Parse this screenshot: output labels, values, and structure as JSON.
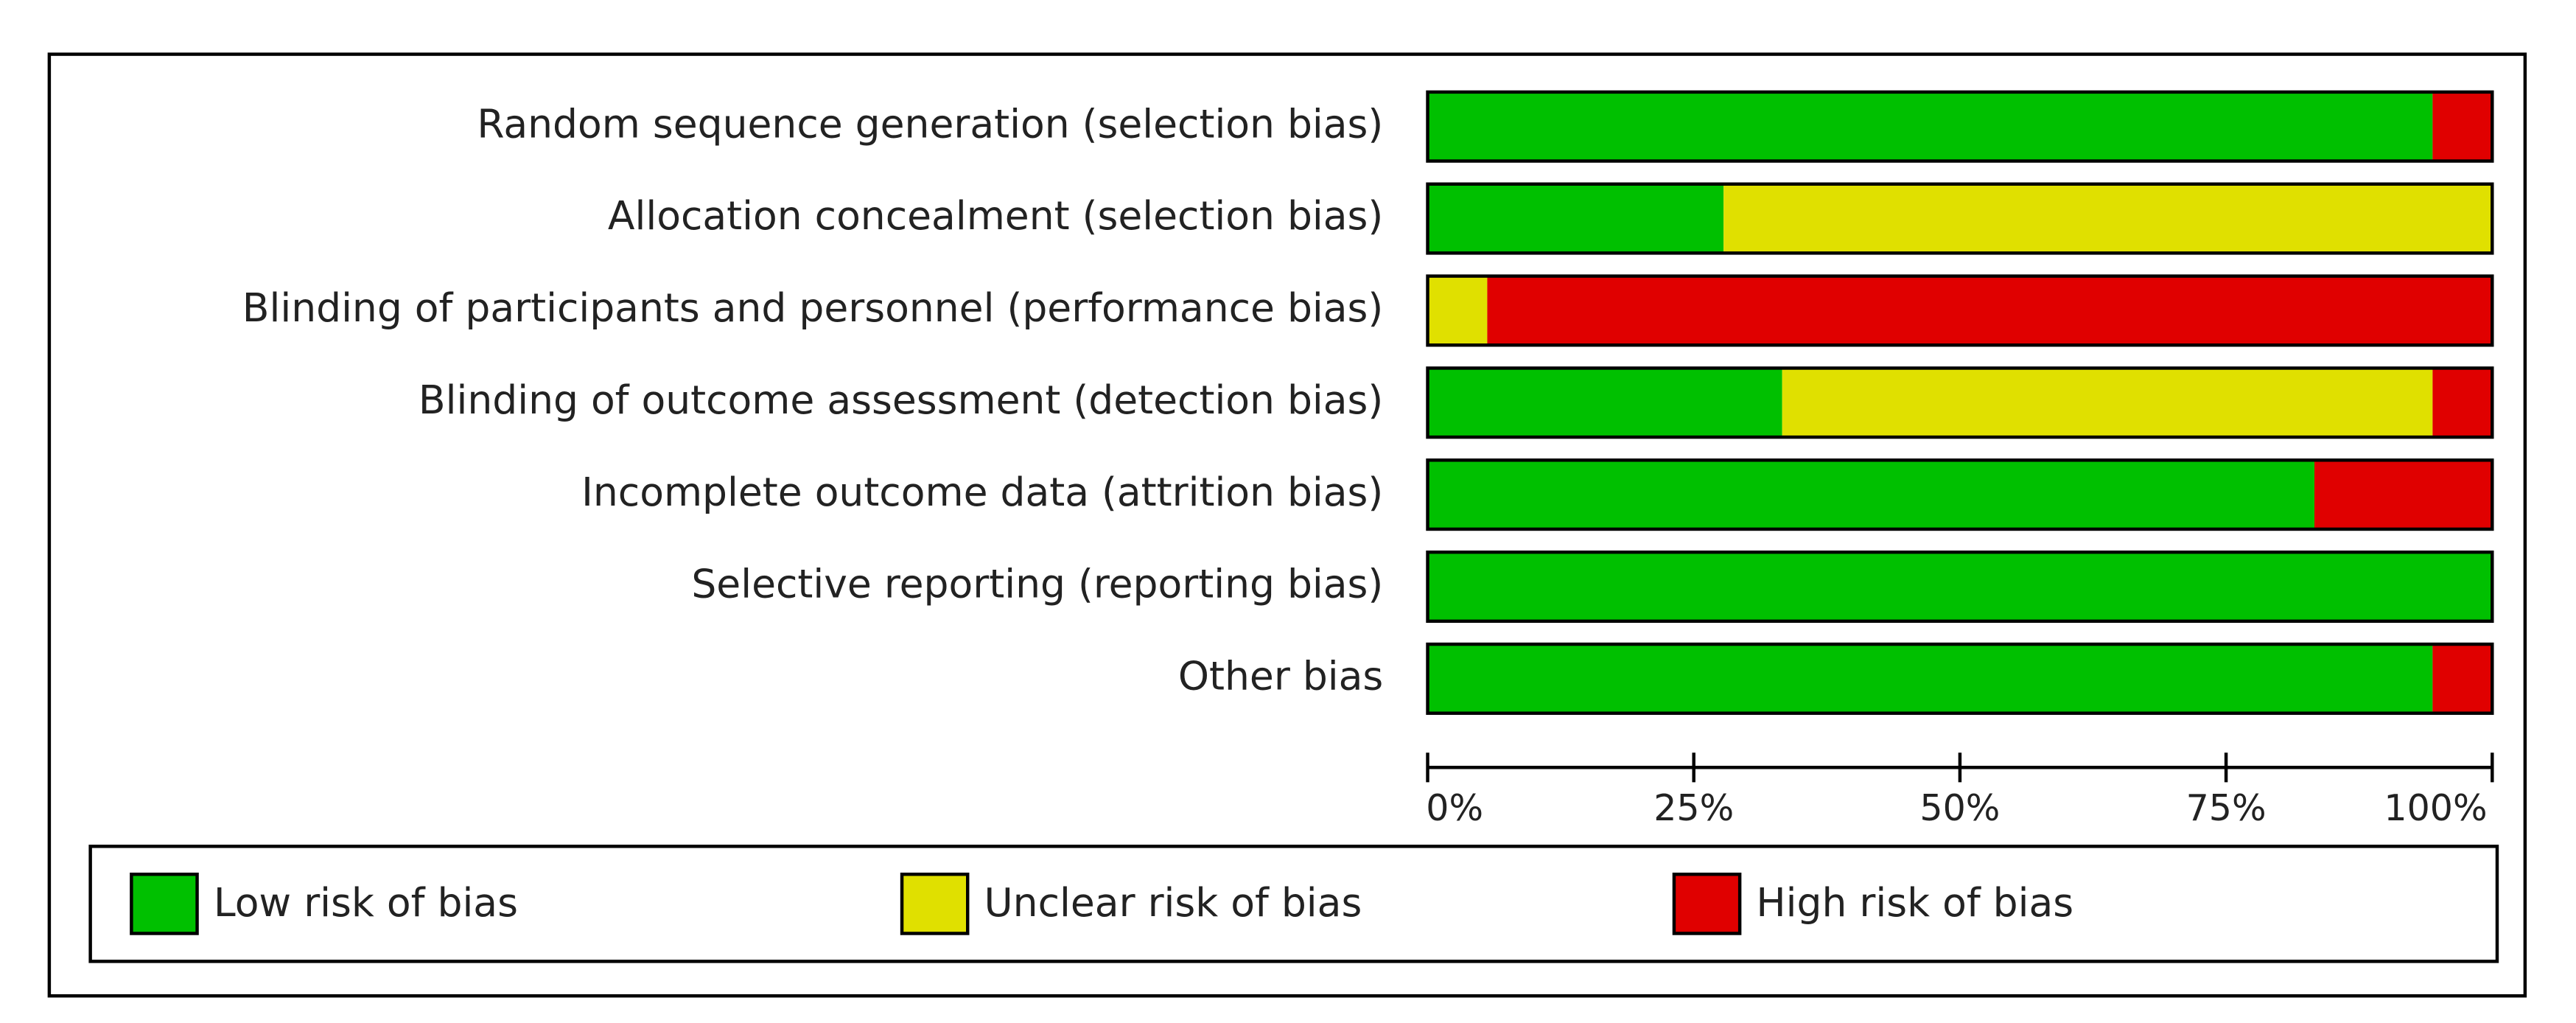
{
  "chart_data": {
    "type": "stacked-bar-horizontal",
    "categories": [
      "Random sequence generation (selection bias)",
      "Allocation concealment (selection bias)",
      "Blinding of participants and personnel (performance bias)",
      "Blinding of outcome assessment (detection bias)",
      "Incomplete outcome data (attrition bias)",
      "Selective reporting (reporting bias)",
      "Other bias"
    ],
    "series": [
      {
        "name": "Low risk of bias",
        "color": "#00c000",
        "values": [
          94.4,
          27.8,
          0,
          33.3,
          83.3,
          100,
          94.4
        ]
      },
      {
        "name": "Unclear risk of bias",
        "color": "#e0e000",
        "values": [
          0,
          72.2,
          5.6,
          61.1,
          0,
          0,
          0
        ]
      },
      {
        "name": "High risk of bias",
        "color": "#e00000",
        "values": [
          5.6,
          0,
          94.4,
          5.6,
          16.7,
          0,
          5.6
        ]
      }
    ],
    "xlim": [
      0,
      100
    ],
    "xticks": [
      {
        "value": 0,
        "label": "0%"
      },
      {
        "value": 25,
        "label": "25%"
      },
      {
        "value": 50,
        "label": "50%"
      },
      {
        "value": 75,
        "label": "75%"
      },
      {
        "value": 100,
        "label": "100%"
      }
    ]
  }
}
